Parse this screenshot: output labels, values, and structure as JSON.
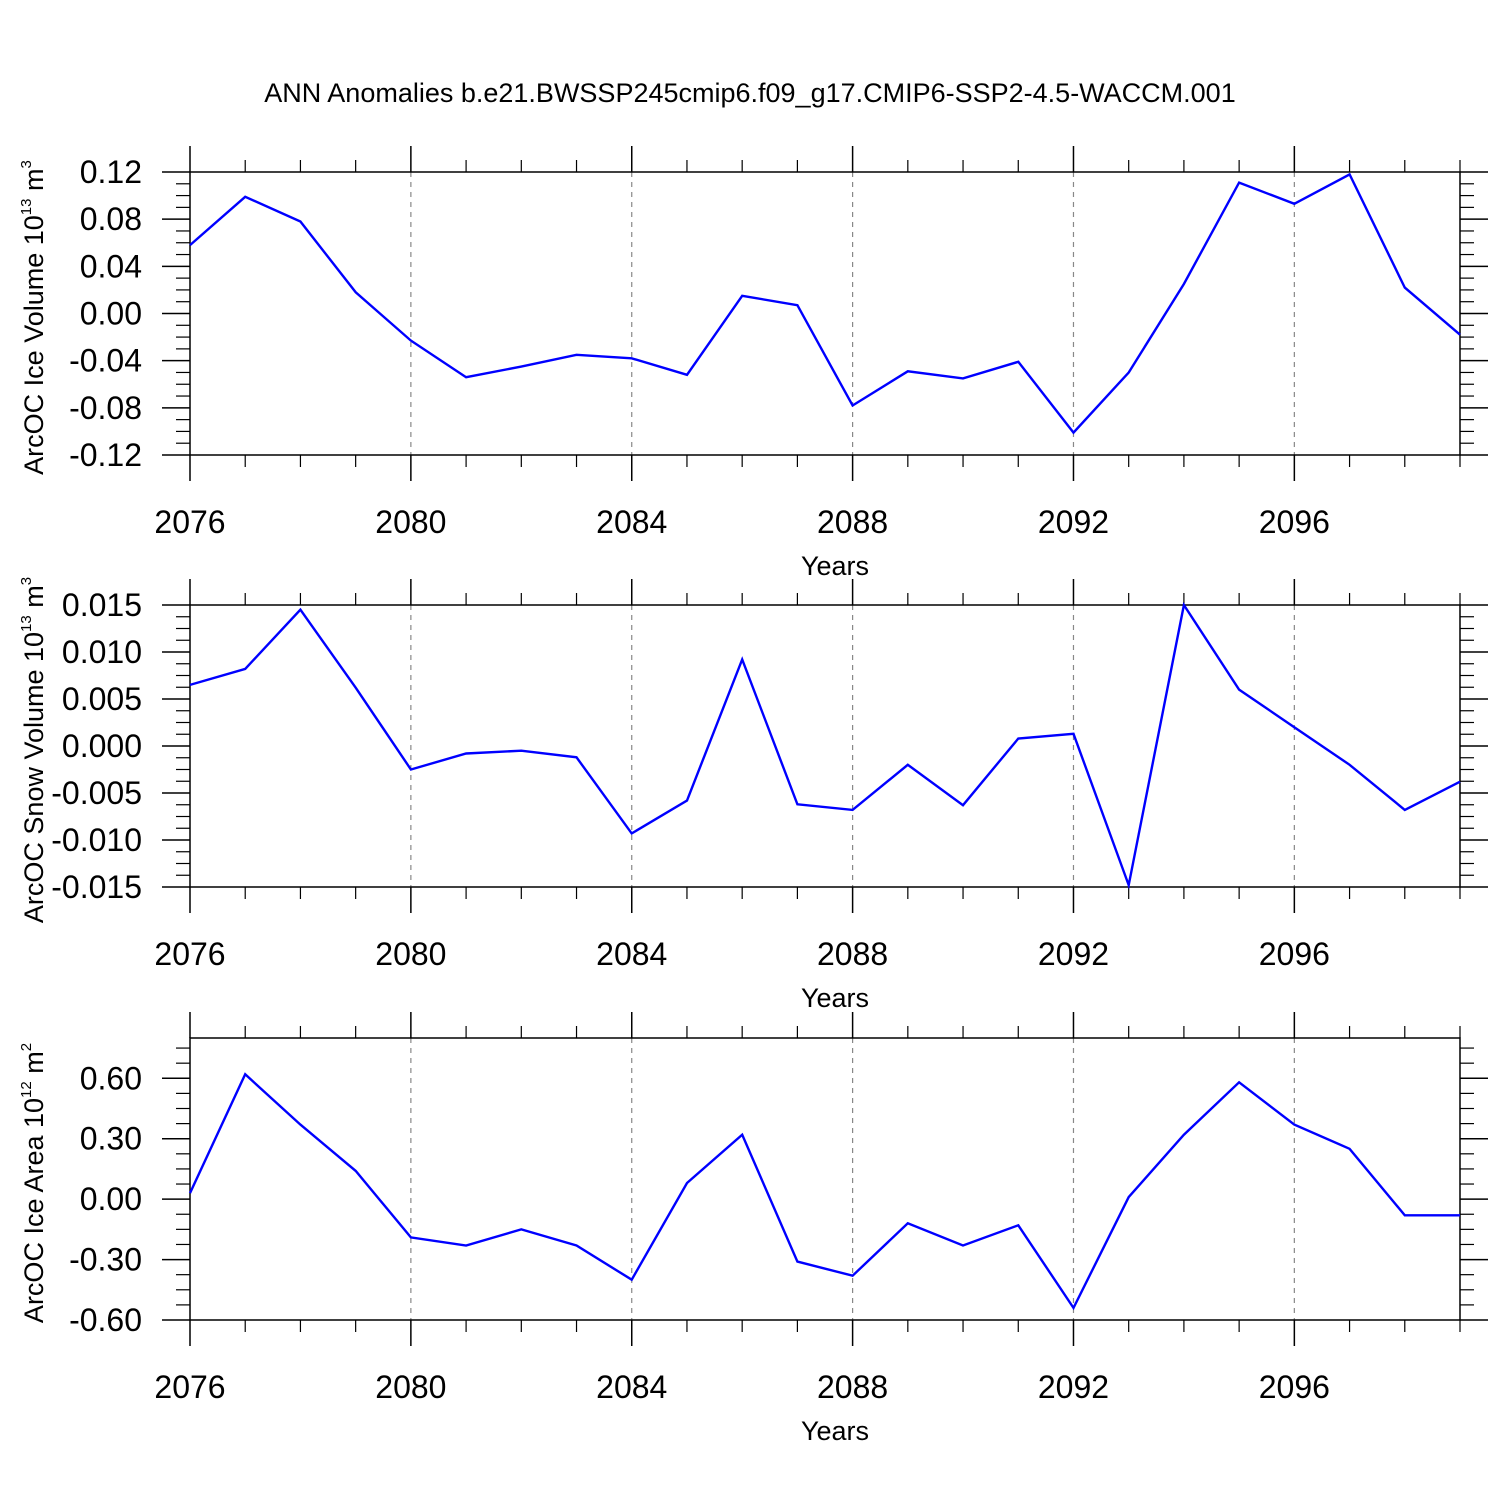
{
  "title": "ANN Anomalies b.e21.BWSSP245cmip6.f09_g17.CMIP6-SSP2-4.5-WACCM.001",
  "colors": {
    "series": "#0000ff",
    "axis": "#000000",
    "grid": "#888888"
  },
  "chart_data": [
    {
      "type": "line",
      "ylabel": {
        "main": "ArcOC Ice Volume 10",
        "exp": "13",
        "unit": " m",
        "unit_exp": "3"
      },
      "xlabel": "Years",
      "xlim": [
        2076,
        2099
      ],
      "xticks": [
        2076,
        2080,
        2084,
        2088,
        2092,
        2096
      ],
      "ylim": [
        -0.12,
        0.12
      ],
      "yticks": [
        -0.12,
        -0.08,
        -0.04,
        0.0,
        0.04,
        0.08,
        0.12
      ],
      "ytick_labels": [
        "-0.12",
        "-0.08",
        "-0.04",
        "0.00",
        "0.04",
        "0.08",
        "0.12"
      ],
      "grid": "vertical-dashed",
      "x": [
        2076,
        2077,
        2078,
        2079,
        2080,
        2081,
        2082,
        2083,
        2084,
        2085,
        2086,
        2087,
        2088,
        2089,
        2090,
        2091,
        2092,
        2093,
        2094,
        2095,
        2096,
        2097,
        2098,
        2099
      ],
      "series": [
        {
          "values": [
            0.058,
            0.099,
            0.078,
            0.018,
            -0.023,
            -0.054,
            -0.045,
            -0.035,
            -0.038,
            -0.052,
            0.015,
            0.007,
            -0.078,
            -0.049,
            -0.055,
            -0.041,
            -0.101,
            -0.05,
            0.025,
            0.111,
            0.093,
            0.118,
            0.022,
            -0.018
          ]
        }
      ]
    },
    {
      "type": "line",
      "ylabel": {
        "main": "ArcOC Snow Volume 10",
        "exp": "13",
        "unit": " m",
        "unit_exp": "3"
      },
      "xlabel": "Years",
      "xlim": [
        2076,
        2099
      ],
      "xticks": [
        2076,
        2080,
        2084,
        2088,
        2092,
        2096
      ],
      "ylim": [
        -0.015,
        0.015
      ],
      "yticks": [
        -0.015,
        -0.01,
        -0.005,
        0.0,
        0.005,
        0.01,
        0.015
      ],
      "ytick_labels": [
        "-0.015",
        "-0.010",
        "-0.005",
        "0.000",
        "0.005",
        "0.010",
        "0.015"
      ],
      "grid": "vertical-dashed",
      "x": [
        2076,
        2077,
        2078,
        2079,
        2080,
        2081,
        2082,
        2083,
        2084,
        2085,
        2086,
        2087,
        2088,
        2089,
        2090,
        2091,
        2092,
        2093,
        2094,
        2095,
        2096,
        2097,
        2098,
        2099
      ],
      "series": [
        {
          "values": [
            0.0065,
            0.0082,
            0.0145,
            0.0062,
            -0.0025,
            -0.0008,
            -0.0005,
            -0.0012,
            -0.0093,
            -0.0058,
            0.0092,
            -0.0062,
            -0.0068,
            -0.002,
            -0.0063,
            0.0008,
            0.0013,
            -0.0148,
            0.015,
            0.006,
            0.002,
            -0.002,
            -0.0068,
            -0.0038
          ]
        }
      ]
    },
    {
      "type": "line",
      "ylabel": {
        "main": "ArcOC Ice Area 10",
        "exp": "12",
        "unit": " m",
        "unit_exp": "2"
      },
      "xlabel": "Years",
      "xlim": [
        2076,
        2099
      ],
      "xticks": [
        2076,
        2080,
        2084,
        2088,
        2092,
        2096
      ],
      "ylim": [
        -0.6,
        0.8
      ],
      "yticks": [
        -0.6,
        -0.3,
        0.0,
        0.3,
        0.6
      ],
      "ytick_labels": [
        "-0.60",
        "-0.30",
        "0.00",
        "0.30",
        "0.60"
      ],
      "grid": "vertical-dashed",
      "x": [
        2076,
        2077,
        2078,
        2079,
        2080,
        2081,
        2082,
        2083,
        2084,
        2085,
        2086,
        2087,
        2088,
        2089,
        2090,
        2091,
        2092,
        2093,
        2094,
        2095,
        2096,
        2097,
        2098,
        2099
      ],
      "series": [
        {
          "values": [
            0.03,
            0.62,
            0.37,
            0.14,
            -0.19,
            -0.23,
            -0.15,
            -0.23,
            -0.4,
            0.08,
            0.32,
            -0.31,
            -0.38,
            -0.12,
            -0.23,
            -0.13,
            -0.54,
            0.01,
            0.32,
            0.58,
            0.37,
            0.25,
            -0.08,
            -0.08
          ]
        }
      ]
    }
  ]
}
